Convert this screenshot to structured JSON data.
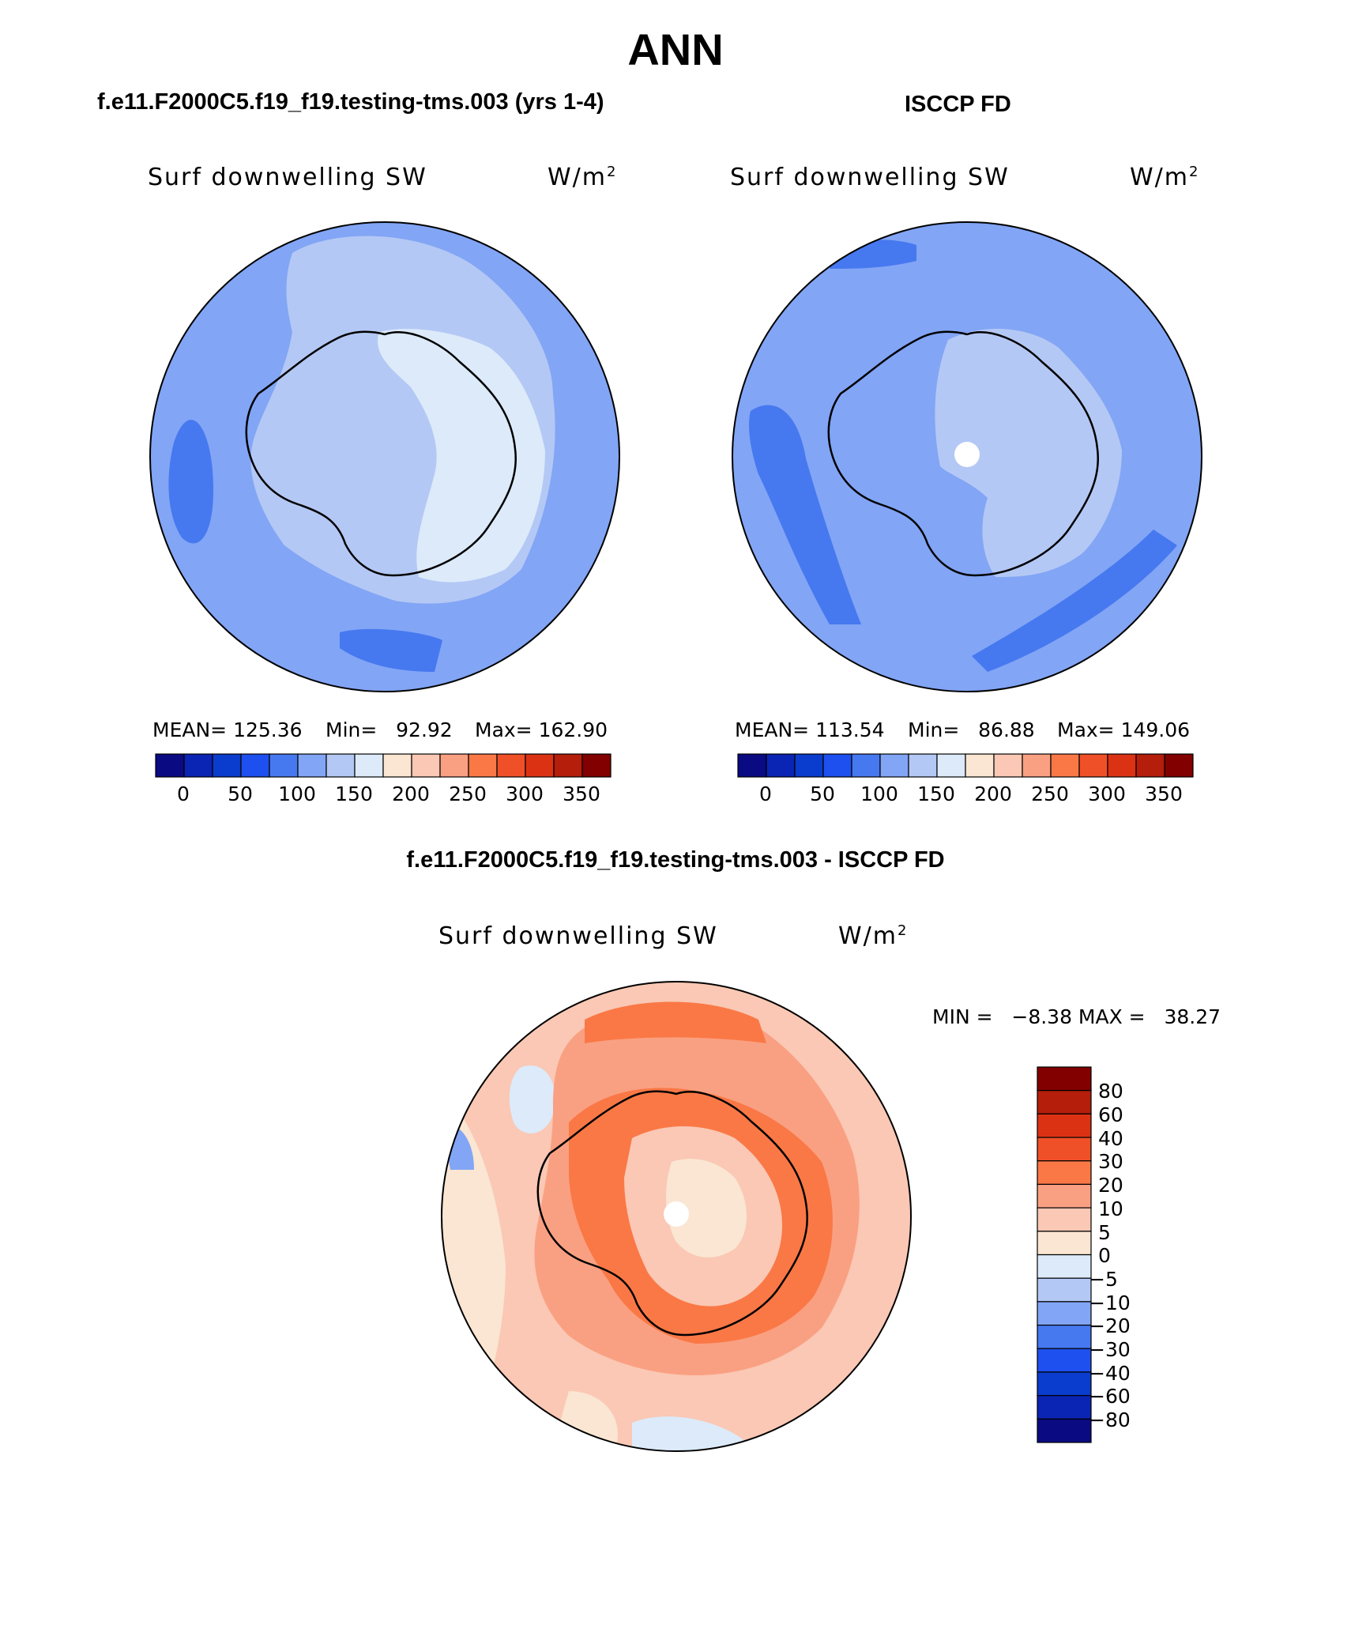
{
  "title": "ANN",
  "panels": [
    {
      "case_title": "f.e11.F2000C5.f19_f19.testing-tms.003 (yrs 1-4)",
      "var_label": "Surf downwelling SW",
      "units": "W/m",
      "units_sup": "2",
      "stats": {
        "mean": "MEAN= 125.36",
        "min": "Min=   92.92",
        "max": "Max= 162.90"
      },
      "colorbar_labels": [
        "0",
        "50",
        "100",
        "150",
        "200",
        "250",
        "300",
        "350"
      ]
    },
    {
      "case_title": "ISCCP FD",
      "var_label": "Surf downwelling SW",
      "units": "W/m",
      "units_sup": "2",
      "stats": {
        "mean": "MEAN= 113.54",
        "min": "Min=   86.88",
        "max": "Max= 149.06"
      },
      "colorbar_labels": [
        "0",
        "50",
        "100",
        "150",
        "200",
        "250",
        "300",
        "350"
      ]
    }
  ],
  "diff_panel": {
    "case_title": "f.e11.F2000C5.f19_f19.testing-tms.003 - ISCCP FD",
    "var_label": "Surf downwelling SW",
    "units": "W/m",
    "units_sup": "2",
    "minmax": "MIN =   −8.38 MAX =   38.27",
    "colorbar_labels": [
      "80",
      "60",
      "40",
      "30",
      "20",
      "10",
      "5",
      "0",
      "−5",
      "−10",
      "−20",
      "−30",
      "−40",
      "−60",
      "−80"
    ]
  },
  "colors": {
    "abs_scale": [
      "#0a0a82",
      "#0a24b4",
      "#0a3ccd",
      "#1e50f0",
      "#4678f0",
      "#82a5f5",
      "#b4c8f5",
      "#dceafa",
      "#fae6d2",
      "#fac8b4",
      "#faa082",
      "#fa7846",
      "#f05028",
      "#dc3214",
      "#b41e0a",
      "#820000"
    ],
    "diff_scale_top_down": [
      "#820000",
      "#b41e0a",
      "#dc3214",
      "#f05028",
      "#fa7846",
      "#faa082",
      "#fac8b4",
      "#fae6d2",
      "#dceafa",
      "#b4c8f5",
      "#82a5f5",
      "#4678f0",
      "#1e50f0",
      "#0a3ccd",
      "#0a24b4",
      "#0a0a82"
    ]
  }
}
